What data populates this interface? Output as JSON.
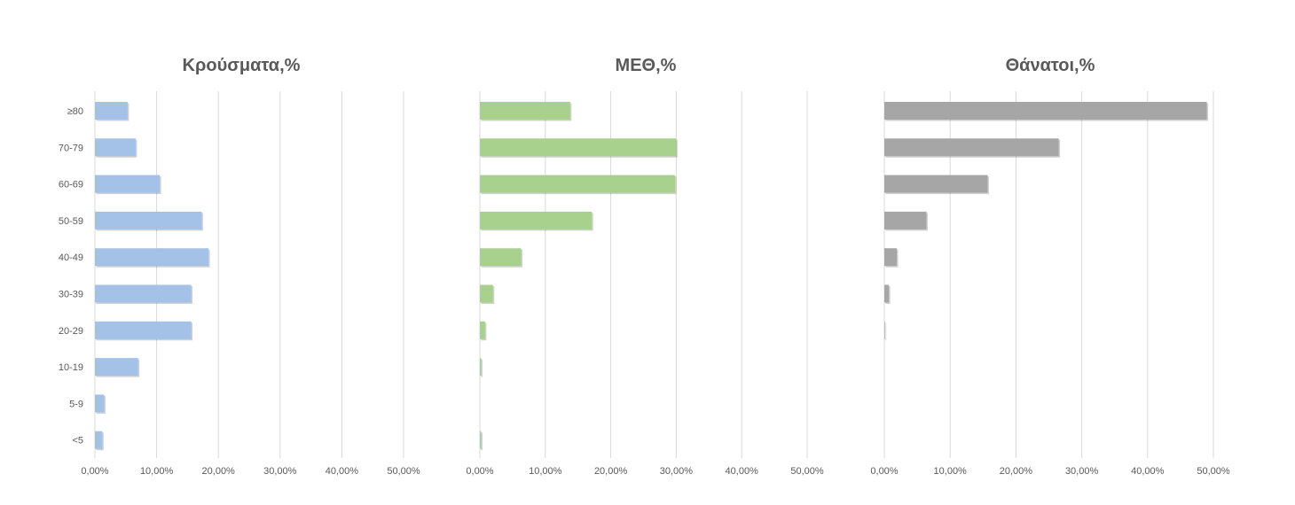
{
  "chart_data": [
    {
      "type": "bar",
      "orientation": "horizontal",
      "title": "Κρούσματα,%",
      "categories": [
        "≥80",
        "70-79",
        "60-69",
        "50-59",
        "40-49",
        "30-39",
        "20-29",
        "10-19",
        "5-9",
        "<5"
      ],
      "values": [
        5.3,
        6.6,
        10.5,
        17.3,
        18.4,
        15.6,
        15.6,
        7.0,
        1.5,
        1.2
      ],
      "xlim": [
        0,
        50
      ],
      "xticks": [
        "0,00%",
        "10,00%",
        "20,00%",
        "30,00%",
        "40,00%",
        "50,00%"
      ],
      "color": "#a4c2e8",
      "grid": true
    },
    {
      "type": "bar",
      "orientation": "horizontal",
      "title": "ΜΕΘ,%",
      "categories": [
        "≥80",
        "70-79",
        "60-69",
        "50-59",
        "40-49",
        "30-39",
        "20-29",
        "10-19",
        "5-9",
        "<5"
      ],
      "values": [
        13.8,
        30.0,
        29.8,
        17.1,
        6.3,
        2.0,
        0.8,
        0.2,
        0.0,
        0.2
      ],
      "xlim": [
        0,
        50
      ],
      "xticks": [
        "0,00%",
        "10,00%",
        "20,00%",
        "30,00%",
        "40,00%",
        "50,00%"
      ],
      "color": "#a9d18e",
      "grid": true
    },
    {
      "type": "bar",
      "orientation": "horizontal",
      "title": "Θάνατοι,%",
      "categories": [
        "≥80",
        "70-79",
        "60-69",
        "50-59",
        "40-49",
        "30-39",
        "20-29",
        "10-19",
        "5-9",
        "<5"
      ],
      "values": [
        49.0,
        26.5,
        15.7,
        6.4,
        1.9,
        0.7,
        0.1,
        0.0,
        0.0,
        0.0
      ],
      "xlim": [
        0,
        50
      ],
      "xticks": [
        "0,00%",
        "10,00%",
        "20,00%",
        "30,00%",
        "40,00%",
        "50,00%"
      ],
      "color": "#a6a6a6",
      "grid": true
    }
  ]
}
